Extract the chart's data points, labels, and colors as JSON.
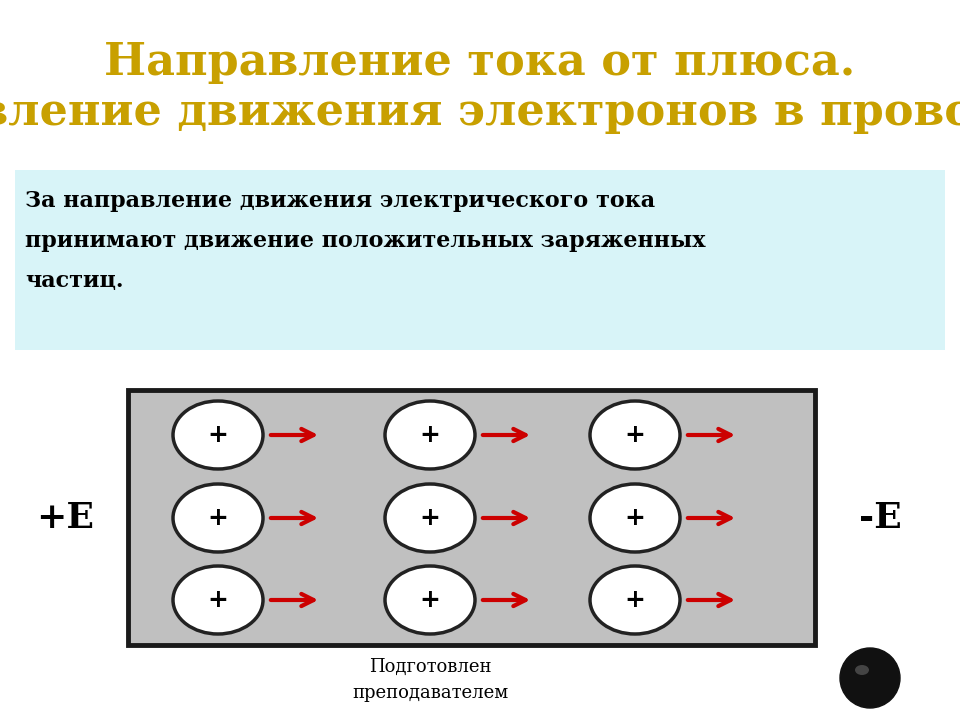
{
  "title_text": "Направление тока от плюса. Направление движения электронов в проводнике.",
  "info_line1": "За направление движения электрического тока",
  "info_line2": "принимают движение положительных заряженных",
  "info_line3": "частиц.",
  "label_plus": "+E",
  "label_minus": "-E",
  "footer_text": "Подготовлен\nпреподавателем",
  "title_color": "#C8A000",
  "info_bg": "#D8F4F8",
  "conductor_bg": "#C0C0C0",
  "conductor_border": "#1a1a1a",
  "arrow_color": "#CC0000",
  "particle_color": "#FFFFFF",
  "particle_edge": "#222222",
  "bg_color": "#FFFFFF"
}
